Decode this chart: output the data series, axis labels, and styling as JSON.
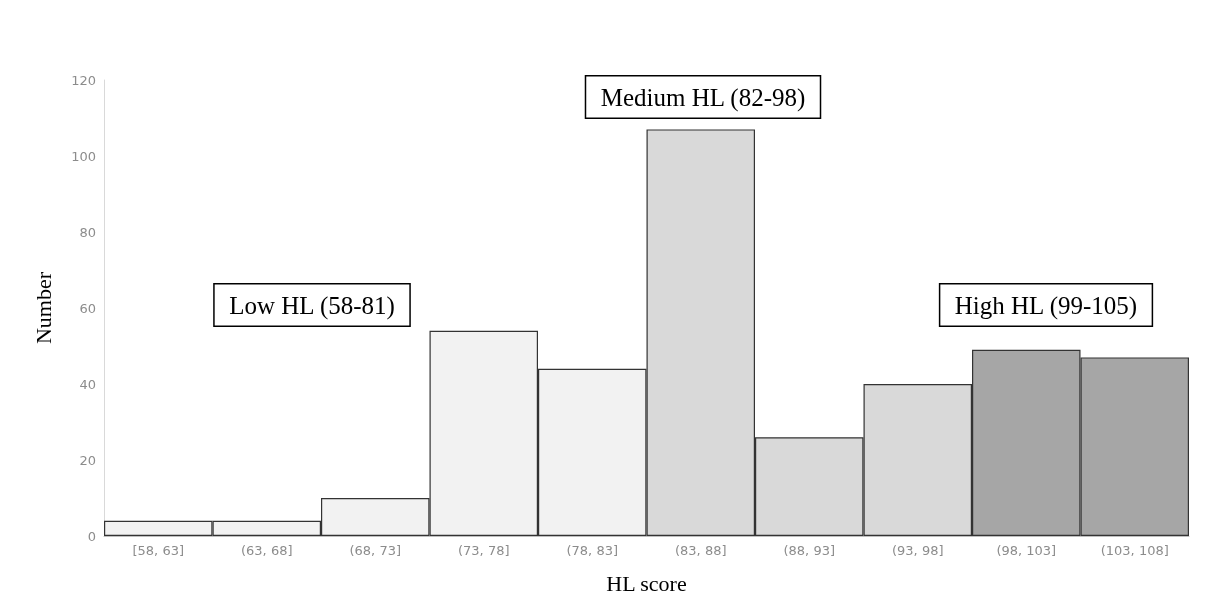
{
  "chart_data": {
    "type": "bar",
    "xlabel": "HL score",
    "ylabel": "Number",
    "categories": [
      "[58, 63]",
      "(63, 68]",
      "(68, 73]",
      "(73, 78]",
      "(78, 83]",
      "(83, 88]",
      "(88, 93]",
      "(93, 98]",
      "(98, 103]",
      "(103, 108]"
    ],
    "values": [
      4,
      4,
      10,
      54,
      44,
      107,
      26,
      40,
      49,
      47
    ],
    "colors": [
      "#f2f2f2",
      "#f2f2f2",
      "#f2f2f2",
      "#f2f2f2",
      "#f2f2f2",
      "#d9d9d9",
      "#d9d9d9",
      "#d9d9d9",
      "#a6a6a6",
      "#a6a6a6"
    ],
    "ylim": [
      0,
      120
    ],
    "yticks": [
      0,
      20,
      40,
      60,
      80,
      100,
      120
    ],
    "grid": false,
    "annotations": [
      "Low HL (58-81)",
      "Medium HL (82-98)",
      "High HL (99-105)"
    ]
  }
}
